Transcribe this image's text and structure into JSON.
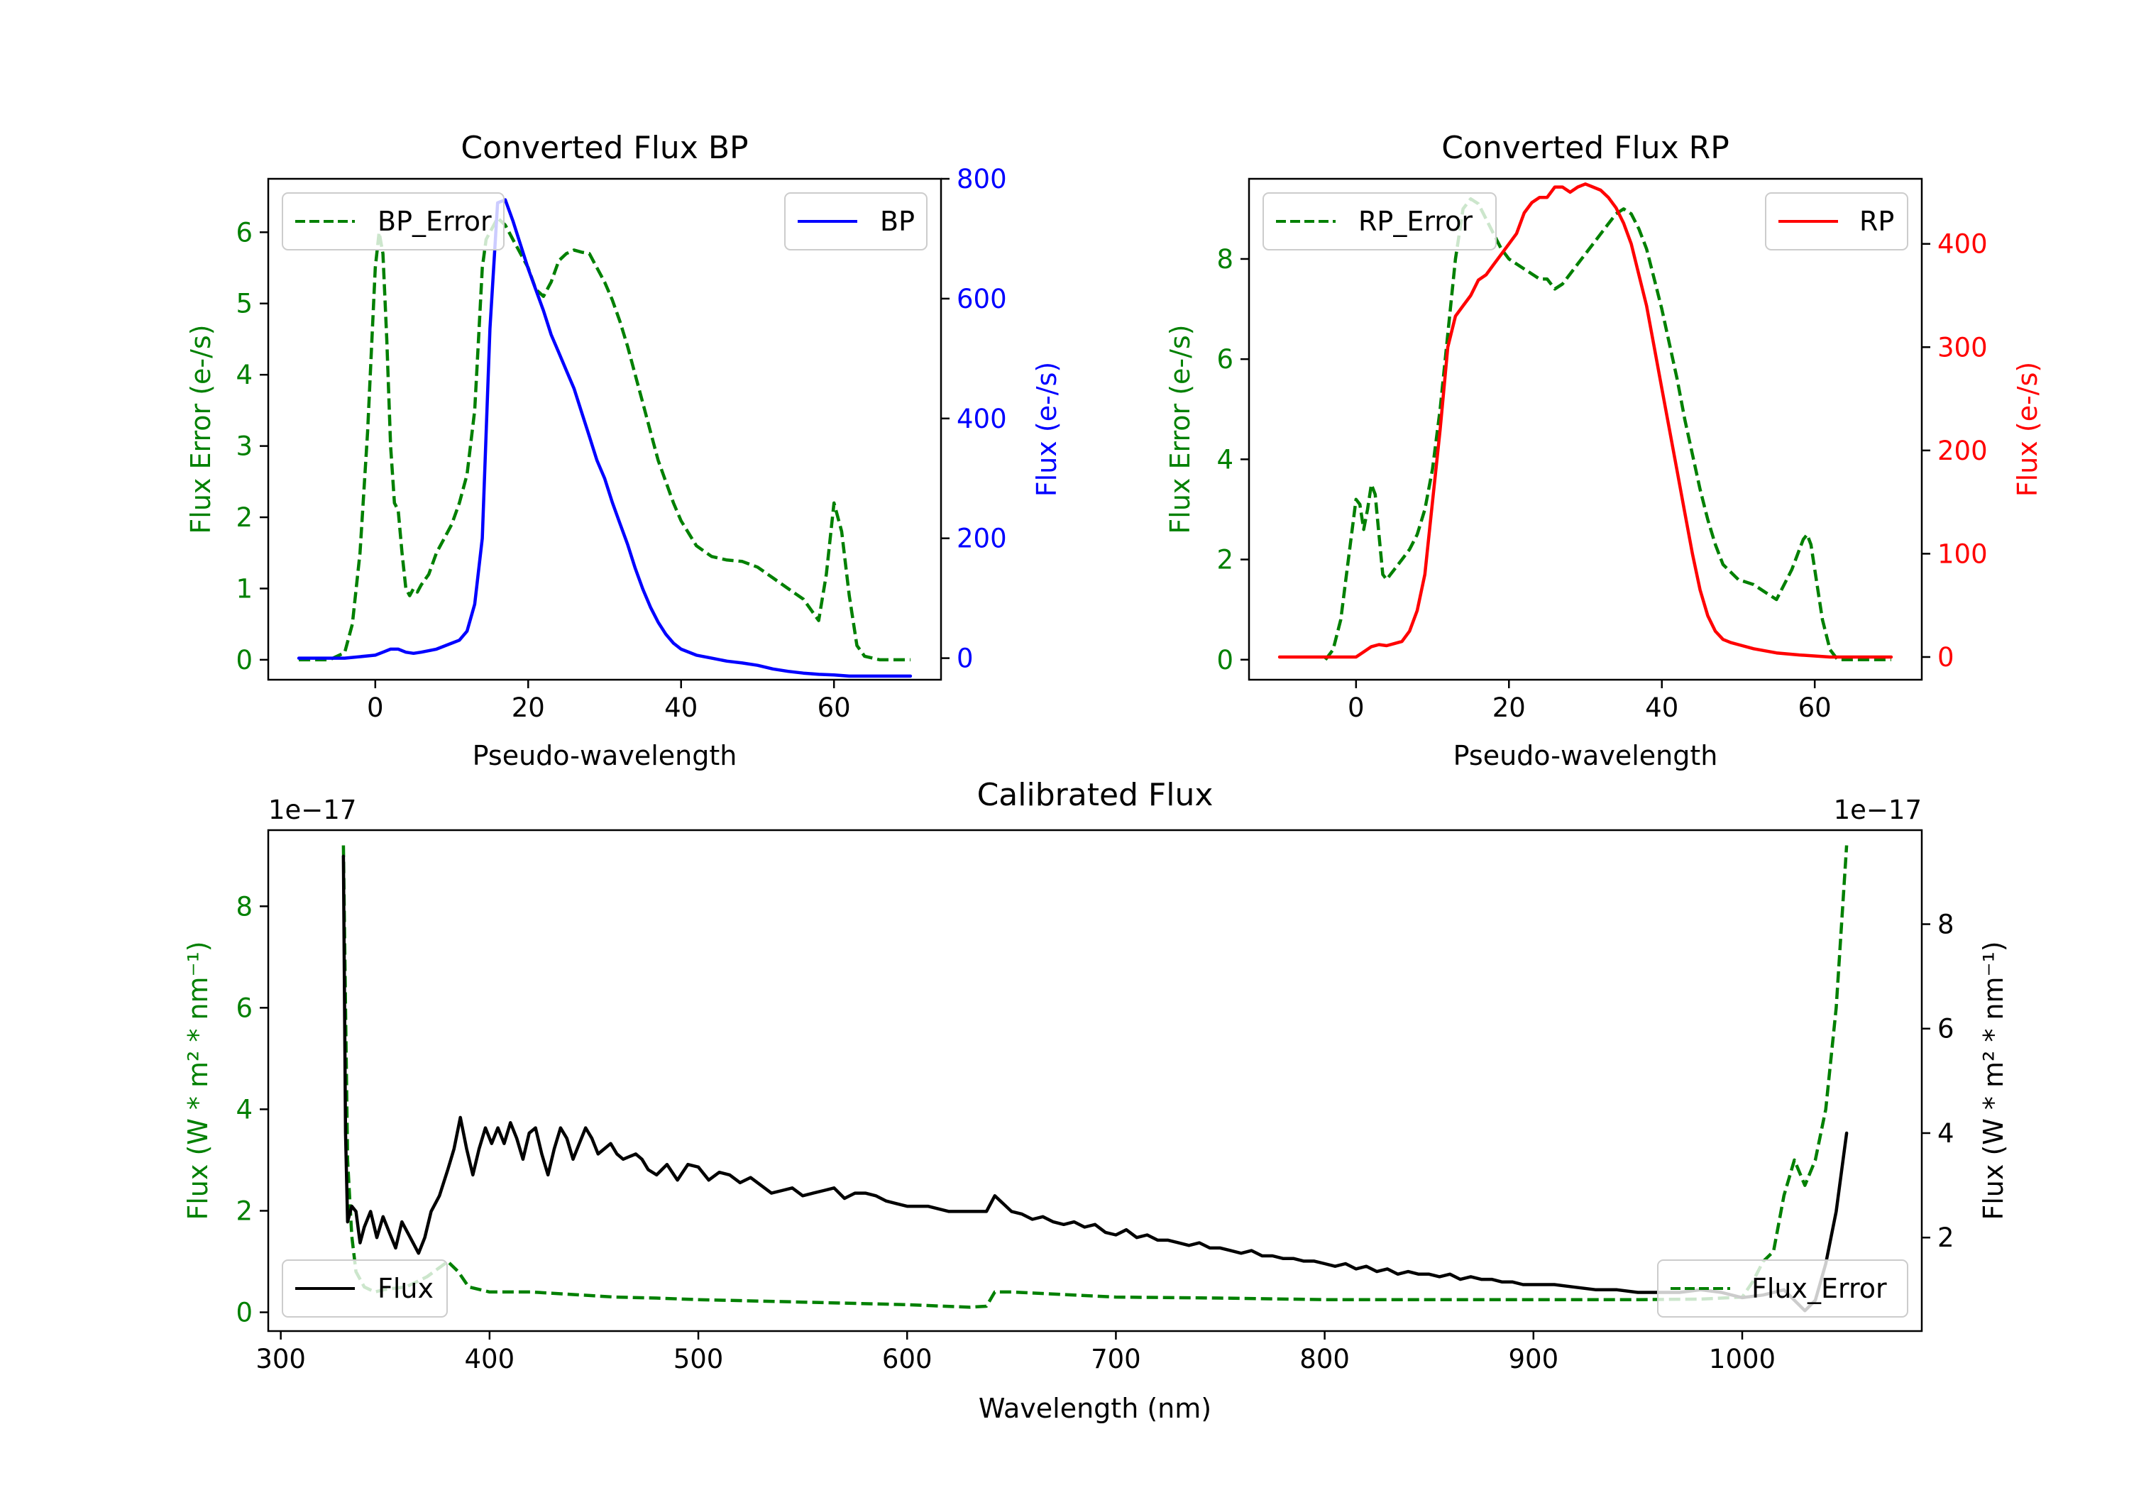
{
  "chart_data": [
    {
      "type": "line",
      "title": "Converted Flux BP",
      "xlabel": "Pseudo-wavelength",
      "ylabel_left": "Flux Error (e-/s)",
      "ylabel_right": "Flux (e-/s)",
      "xlim": [
        -14,
        74
      ],
      "ylim_left": [
        -0.28,
        6.75
      ],
      "ylim_right": [
        -36,
        800
      ],
      "xticks": [
        0,
        20,
        40,
        60
      ],
      "yticks_left": [
        0,
        1,
        2,
        3,
        4,
        5,
        6
      ],
      "yticks_right": [
        0,
        200,
        400,
        600,
        800
      ],
      "left_color": "#008000",
      "right_color": "#0000ff",
      "series": [
        {
          "name": "BP_Error",
          "axis": "left",
          "style": "dashed",
          "color": "#008000",
          "x": [
            -10,
            -6,
            -4,
            -3,
            -2,
            -1,
            0,
            0.5,
            1,
            1.5,
            2,
            2.5,
            3,
            3.5,
            4,
            4.5,
            5,
            5.5,
            6,
            7,
            8,
            9,
            10,
            11,
            12,
            13,
            13.5,
            14,
            14.5,
            15,
            15.5,
            16,
            17,
            18,
            19,
            20,
            21,
            22,
            23,
            24,
            25,
            26,
            27,
            28,
            29,
            30,
            31,
            32,
            33,
            34,
            35,
            36,
            37,
            38,
            39,
            40,
            42,
            44,
            46,
            48,
            50,
            52,
            54,
            56,
            57,
            58,
            59,
            60,
            61,
            62,
            63,
            64,
            66,
            70
          ],
          "values": [
            0,
            0,
            0.1,
            0.5,
            1.5,
            3.2,
            5.5,
            6,
            5.7,
            4.5,
            3,
            2.2,
            2.1,
            1.5,
            1,
            0.9,
            1,
            0.95,
            1.05,
            1.2,
            1.5,
            1.7,
            1.9,
            2.2,
            2.6,
            3.5,
            4.5,
            5.5,
            5.9,
            6,
            6.1,
            6.2,
            6.1,
            5.9,
            5.7,
            5.5,
            5.2,
            5.1,
            5.3,
            5.6,
            5.7,
            5.75,
            5.72,
            5.7,
            5.5,
            5.3,
            5.05,
            4.75,
            4.4,
            4,
            3.6,
            3.2,
            2.8,
            2.5,
            2.2,
            1.95,
            1.6,
            1.45,
            1.4,
            1.38,
            1.3,
            1.15,
            1,
            0.85,
            0.7,
            0.55,
            1.2,
            2.2,
            1.8,
            0.9,
            0.2,
            0.05,
            0,
            0
          ]
        },
        {
          "name": "BP",
          "axis": "right",
          "style": "solid",
          "color": "#0000ff",
          "x": [
            -10,
            -4,
            0,
            1,
            2,
            3,
            4,
            5,
            6,
            8,
            10,
            11,
            12,
            13,
            14,
            15,
            16,
            17,
            18,
            19,
            20,
            21,
            22,
            23,
            24,
            25,
            26,
            27,
            28,
            29,
            30,
            31,
            32,
            33,
            34,
            35,
            36,
            37,
            38,
            39,
            40,
            42,
            44,
            46,
            48,
            50,
            52,
            54,
            56,
            58,
            60,
            62,
            64,
            66,
            68,
            70
          ],
          "values": [
            0,
            0,
            5,
            10,
            15,
            15,
            10,
            8,
            10,
            15,
            25,
            30,
            45,
            90,
            200,
            550,
            760,
            765,
            730,
            690,
            650,
            615,
            580,
            540,
            510,
            480,
            450,
            410,
            370,
            330,
            300,
            260,
            225,
            190,
            150,
            115,
            85,
            60,
            40,
            25,
            15,
            5,
            0,
            -5,
            -8,
            -12,
            -18,
            -22,
            -25,
            -27,
            -28,
            -30,
            -30,
            -30,
            -30,
            -30
          ]
        }
      ],
      "legend": [
        {
          "label": "BP_Error",
          "placement": "upper left"
        },
        {
          "label": "BP",
          "placement": "upper right"
        }
      ]
    },
    {
      "type": "line",
      "title": "Converted Flux RP",
      "xlabel": "Pseudo-wavelength",
      "ylabel_left": "Flux Error (e-/s)",
      "ylabel_right": "Flux (e-/s)",
      "xlim": [
        -14,
        74
      ],
      "ylim_left": [
        -0.4,
        9.6
      ],
      "ylim_right": [
        -22,
        463
      ],
      "xticks": [
        0,
        20,
        40,
        60
      ],
      "yticks_left": [
        0,
        2,
        4,
        6,
        8
      ],
      "yticks_right": [
        0,
        100,
        200,
        300,
        400
      ],
      "left_color": "#008000",
      "right_color": "#ff0000",
      "series": [
        {
          "name": "RP_Error",
          "axis": "left",
          "style": "dashed",
          "color": "#008000",
          "x": [
            -4,
            -3,
            -2,
            -1,
            0,
            0.5,
            1,
            1.5,
            2,
            2.5,
            3,
            3.5,
            4,
            4.5,
            5,
            6,
            7,
            8,
            9,
            10,
            11,
            12,
            13,
            14,
            15,
            16,
            17,
            18,
            19,
            20,
            21,
            22,
            23,
            24,
            25,
            26,
            27,
            28,
            29,
            30,
            31,
            32,
            33,
            34,
            35,
            36,
            37,
            38,
            39,
            40,
            41,
            42,
            43,
            44,
            45,
            46,
            47,
            48,
            50,
            52,
            54,
            55,
            56,
            57,
            58,
            58.5,
            59,
            59.5,
            60,
            61,
            62,
            63,
            64,
            70
          ],
          "values": [
            0,
            0.2,
            0.8,
            2,
            3.2,
            3.1,
            2.6,
            3,
            3.5,
            3.3,
            2.5,
            1.7,
            1.6,
            1.7,
            1.8,
            2,
            2.2,
            2.5,
            3,
            3.8,
            5,
            6.5,
            8,
            9,
            9.2,
            9.1,
            8.8,
            8.5,
            8.2,
            8,
            7.9,
            7.8,
            7.7,
            7.6,
            7.6,
            7.4,
            7.5,
            7.7,
            7.9,
            8.1,
            8.3,
            8.5,
            8.7,
            8.9,
            9,
            8.9,
            8.6,
            8.2,
            7.6,
            7,
            6.3,
            5.6,
            4.8,
            4.1,
            3.4,
            2.8,
            2.3,
            1.9,
            1.6,
            1.5,
            1.3,
            1.2,
            1.5,
            1.8,
            2.2,
            2.4,
            2.5,
            2.3,
            1.8,
            0.8,
            0.2,
            0,
            0,
            0
          ]
        },
        {
          "name": "RP",
          "axis": "right",
          "style": "solid",
          "color": "#ff0000",
          "x": [
            -10,
            -2,
            0,
            1,
            2,
            3,
            4,
            5,
            6,
            7,
            8,
            9,
            10,
            11,
            12,
            13,
            14,
            15,
            16,
            17,
            18,
            19,
            20,
            21,
            22,
            23,
            24,
            25,
            26,
            27,
            28,
            29,
            30,
            31,
            32,
            33,
            34,
            35,
            36,
            37,
            38,
            39,
            40,
            41,
            42,
            43,
            44,
            45,
            46,
            47,
            48,
            49,
            50,
            52,
            55,
            58,
            62,
            70
          ],
          "values": [
            0,
            0,
            0,
            5,
            10,
            12,
            11,
            13,
            15,
            25,
            45,
            80,
            150,
            220,
            300,
            330,
            340,
            350,
            365,
            370,
            380,
            390,
            400,
            410,
            430,
            440,
            445,
            445,
            455,
            455,
            450,
            455,
            458,
            455,
            452,
            445,
            435,
            420,
            400,
            370,
            340,
            300,
            260,
            220,
            180,
            140,
            100,
            65,
            40,
            25,
            17,
            14,
            12,
            8,
            4,
            2,
            0,
            0
          ]
        }
      ],
      "legend": [
        {
          "label": "RP_Error",
          "placement": "upper left"
        },
        {
          "label": "RP",
          "placement": "upper right"
        }
      ]
    },
    {
      "type": "line",
      "title": "Calibrated Flux",
      "xlabel": "Wavelength (nm)",
      "ylabel_left": "Flux (W * m² * nm⁻¹)",
      "ylabel_right": "Flux (W * m² * nm⁻¹)",
      "offset_text_left": "1e−17",
      "offset_text_right": "1e−17",
      "xlim": [
        294,
        1086
      ],
      "ylim_left": [
        -0.37,
        9.5
      ],
      "ylim_right": [
        0.21,
        9.8
      ],
      "xticks": [
        300,
        400,
        500,
        600,
        700,
        800,
        900,
        1000
      ],
      "yticks_left": [
        0,
        2,
        4,
        6,
        8
      ],
      "yticks_right": [
        2,
        4,
        6,
        8
      ],
      "left_color": "#008000",
      "right_color": "#000000",
      "series": [
        {
          "name": "Flux_Error",
          "axis": "left",
          "style": "dashed",
          "color": "#008000",
          "x": [
            330,
            331,
            332,
            334,
            336,
            340,
            345,
            350,
            360,
            370,
            380,
            385,
            390,
            400,
            420,
            440,
            460,
            480,
            500,
            550,
            600,
            630,
            638,
            642,
            650,
            700,
            750,
            800,
            850,
            900,
            950,
            980,
            1000,
            1005,
            1010,
            1015,
            1020,
            1025,
            1030,
            1035,
            1040,
            1045,
            1050
          ],
          "values": [
            9.2,
            6,
            3,
            1.5,
            0.8,
            0.5,
            0.4,
            0.45,
            0.5,
            0.7,
            1,
            0.8,
            0.5,
            0.4,
            0.4,
            0.35,
            0.3,
            0.28,
            0.25,
            0.2,
            0.15,
            0.1,
            0.12,
            0.4,
            0.4,
            0.3,
            0.28,
            0.25,
            0.25,
            0.25,
            0.25,
            0.26,
            0.3,
            0.6,
            1,
            1.2,
            2.3,
            3,
            2.5,
            3,
            4,
            6,
            9.2
          ]
        },
        {
          "name": "Flux",
          "axis": "right",
          "style": "solid",
          "color": "#000000",
          "x": [
            330,
            331,
            332,
            334,
            336,
            338,
            340,
            343,
            346,
            349,
            352,
            355,
            358,
            362,
            366,
            369,
            372,
            376,
            380,
            383,
            386,
            389,
            392,
            395,
            398,
            401,
            404,
            407,
            410,
            413,
            416,
            419,
            422,
            425,
            428,
            431,
            434,
            437,
            440,
            443,
            446,
            449,
            452,
            455,
            458,
            461,
            464,
            467,
            470,
            473,
            476,
            480,
            485,
            490,
            495,
            500,
            505,
            510,
            515,
            520,
            525,
            530,
            535,
            540,
            545,
            550,
            555,
            560,
            565,
            570,
            575,
            580,
            585,
            590,
            595,
            600,
            610,
            620,
            630,
            638,
            642,
            646,
            650,
            655,
            660,
            665,
            670,
            675,
            680,
            685,
            690,
            695,
            700,
            705,
            710,
            715,
            720,
            725,
            730,
            735,
            740,
            745,
            750,
            755,
            760,
            765,
            770,
            775,
            780,
            785,
            790,
            795,
            800,
            805,
            810,
            815,
            820,
            825,
            830,
            835,
            840,
            845,
            850,
            855,
            860,
            865,
            870,
            875,
            880,
            885,
            890,
            895,
            900,
            910,
            920,
            930,
            940,
            950,
            960,
            970,
            980,
            990,
            1000,
            1010,
            1020,
            1025,
            1030,
            1035,
            1040,
            1045,
            1050
          ],
          "values": [
            9.3,
            4,
            2.3,
            2.6,
            2.5,
            1.9,
            2.2,
            2.5,
            2,
            2.4,
            2.1,
            1.8,
            2.3,
            2,
            1.7,
            2,
            2.5,
            2.8,
            3.3,
            3.7,
            4.3,
            3.7,
            3.2,
            3.7,
            4.1,
            3.8,
            4.1,
            3.8,
            4.2,
            3.9,
            3.5,
            4,
            4.1,
            3.6,
            3.2,
            3.7,
            4.1,
            3.9,
            3.5,
            3.8,
            4.1,
            3.9,
            3.6,
            3.7,
            3.8,
            3.6,
            3.5,
            3.55,
            3.6,
            3.5,
            3.3,
            3.2,
            3.4,
            3.1,
            3.4,
            3.35,
            3.1,
            3.25,
            3.2,
            3.05,
            3.15,
            3.0,
            2.85,
            2.9,
            2.95,
            2.8,
            2.85,
            2.9,
            2.95,
            2.75,
            2.85,
            2.85,
            2.8,
            2.7,
            2.65,
            2.6,
            2.6,
            2.5,
            2.5,
            2.5,
            2.8,
            2.65,
            2.5,
            2.45,
            2.35,
            2.4,
            2.3,
            2.25,
            2.3,
            2.2,
            2.25,
            2.1,
            2.05,
            2.15,
            2.0,
            2.05,
            1.95,
            1.95,
            1.9,
            1.85,
            1.9,
            1.8,
            1.8,
            1.75,
            1.7,
            1.75,
            1.65,
            1.65,
            1.6,
            1.6,
            1.55,
            1.55,
            1.5,
            1.45,
            1.5,
            1.4,
            1.45,
            1.35,
            1.4,
            1.3,
            1.35,
            1.3,
            1.3,
            1.25,
            1.3,
            1.2,
            1.25,
            1.2,
            1.2,
            1.15,
            1.15,
            1.1,
            1.1,
            1.1,
            1.05,
            1.0,
            1.0,
            0.95,
            0.95,
            0.95,
            1.0,
            0.95,
            0.85,
            0.9,
            1.0,
            0.8,
            0.6,
            0.8,
            1.5,
            2.5,
            4.0
          ]
        }
      ],
      "legend": [
        {
          "label": "Flux",
          "placement": "lower left"
        },
        {
          "label": "Flux_Error",
          "placement": "lower right"
        }
      ]
    }
  ]
}
